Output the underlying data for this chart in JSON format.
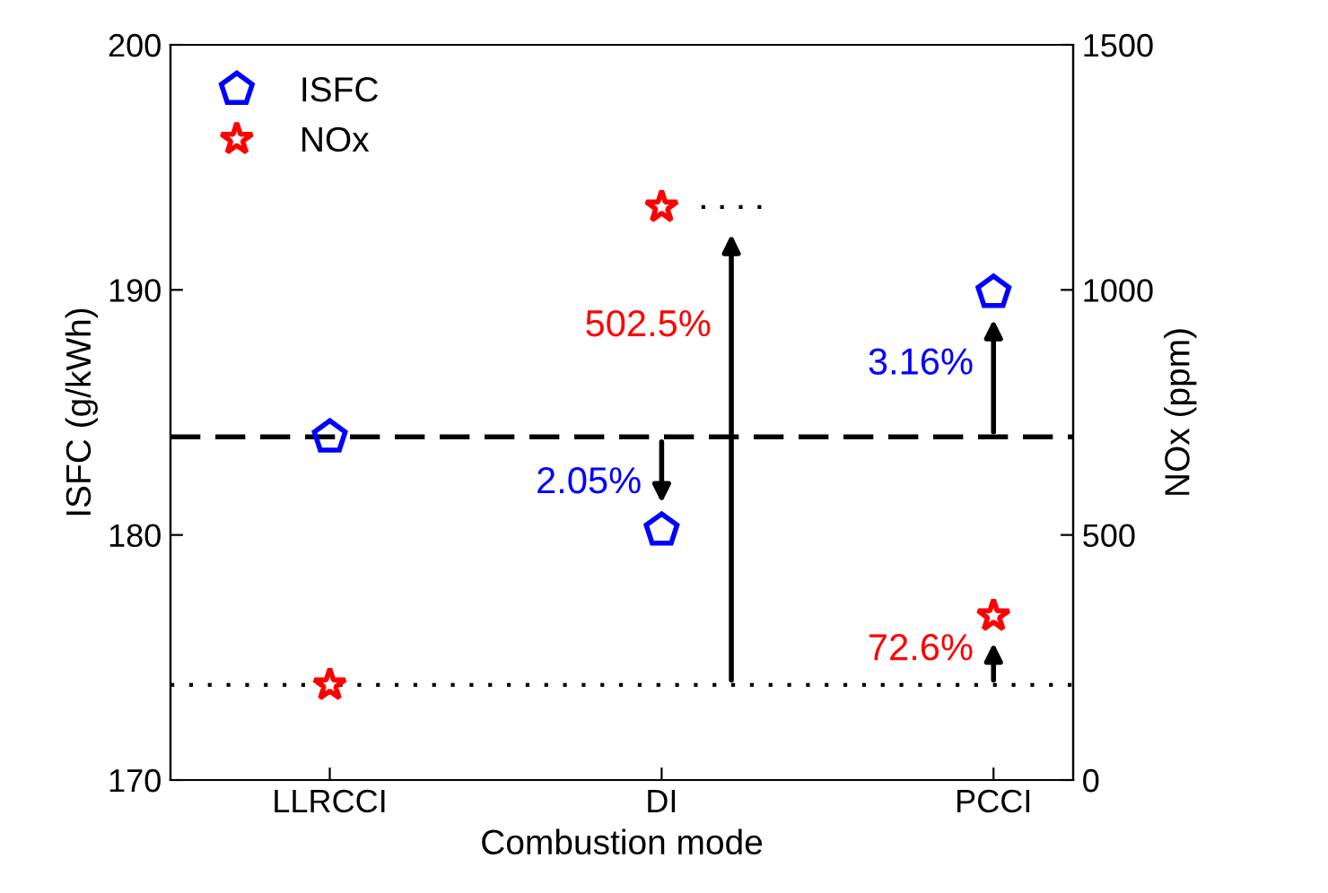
{
  "chart_data": {
    "type": "scatter",
    "xlabel": "Combustion mode",
    "ylabel": "ISFC (g/kWh)",
    "y2label": "NOx (ppm)",
    "categories": [
      "LLRCCI",
      "DI",
      "PCCI"
    ],
    "series": [
      {
        "name": "ISFC",
        "color": "#0000ff",
        "values": [
          184.0,
          180.2,
          189.9
        ]
      },
      {
        "name": "NOx",
        "color": "#ff0000",
        "marker": "star",
        "axis": "y2",
        "values": [
          194,
          1169,
          335
        ]
      }
    ],
    "ylim": [
      170,
      200
    ],
    "yticks": [
      170,
      180,
      190,
      200
    ],
    "y2lim": [
      0,
      1500
    ],
    "y2ticks": [
      0,
      500,
      1000,
      1500
    ],
    "ref_lines": [
      {
        "axis": "y",
        "value": 184.0,
        "color": "#000000",
        "line_style": "dashed"
      },
      {
        "axis": "y2",
        "value": 194,
        "color": "#000000",
        "line_style": "dotted"
      }
    ],
    "annotations": [
      "2.05%",
      "3.16%",
      "502.5%",
      "72.6%"
    ],
    "legend": "top left",
    "grid": false
  }
}
